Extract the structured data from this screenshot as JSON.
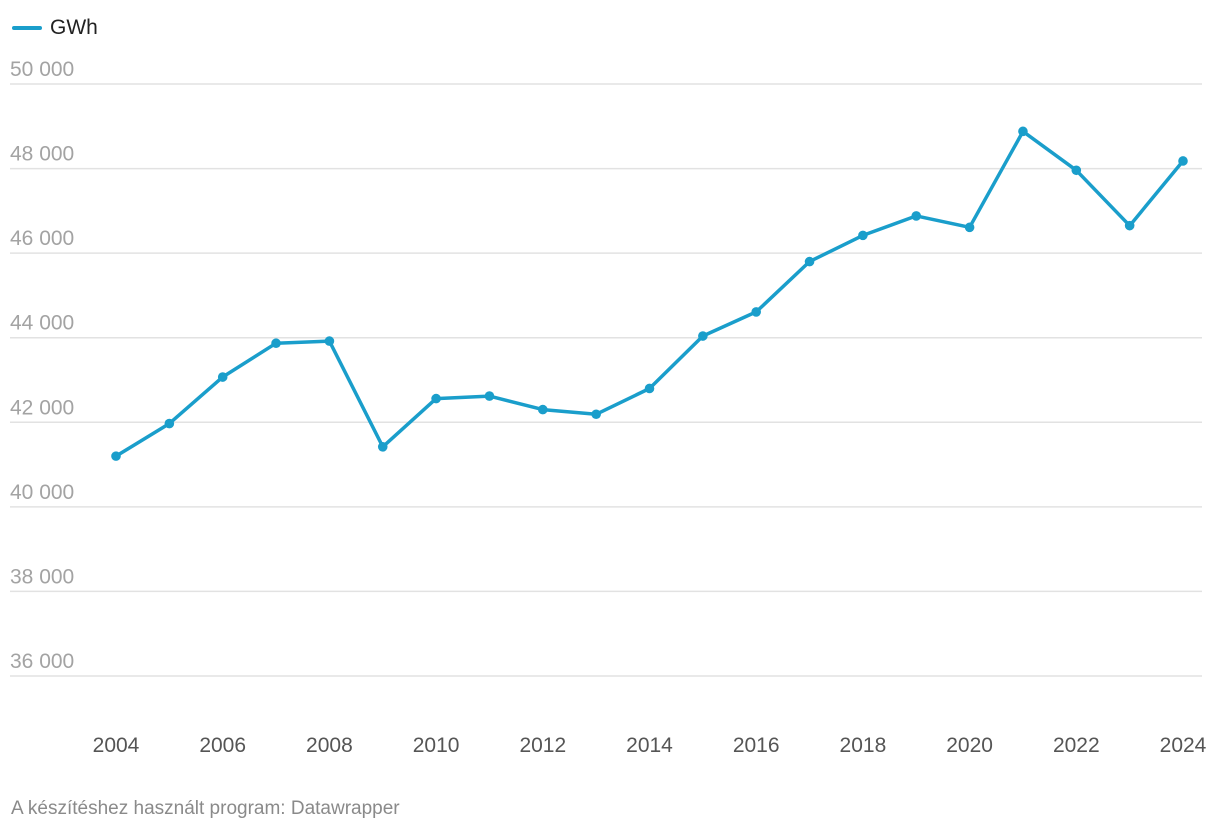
{
  "chart_data": {
    "type": "line",
    "title": "",
    "xlabel": "",
    "ylabel": "",
    "x": [
      2004,
      2005,
      2006,
      2007,
      2008,
      2009,
      2010,
      2011,
      2012,
      2013,
      2014,
      2015,
      2016,
      2017,
      2018,
      2019,
      2020,
      2021,
      2022,
      2023,
      2024
    ],
    "x_ticks": [
      "2004",
      "2006",
      "2008",
      "2010",
      "2012",
      "2014",
      "2016",
      "2018",
      "2020",
      "2022",
      "2024"
    ],
    "y_ticks": [
      "50 000",
      "48 000",
      "46 000",
      "44 000",
      "42 000",
      "40 000",
      "38 000",
      "36 000"
    ],
    "y_tick_values": [
      50000,
      48000,
      46000,
      44000,
      42000,
      40000,
      38000,
      36000
    ],
    "ylim": [
      35000,
      50000
    ],
    "xlim": [
      2004,
      2024
    ],
    "grid": true,
    "legend_position": "top-left",
    "series": [
      {
        "name": "GWh",
        "color": "#1a9ecb",
        "values": [
          41200,
          41970,
          43070,
          43870,
          43920,
          41420,
          42560,
          42620,
          42300,
          42190,
          42800,
          44040,
          44610,
          45800,
          46420,
          46880,
          46610,
          48880,
          47960,
          46650,
          48180
        ]
      }
    ]
  },
  "footer": {
    "credit": "A készítéshez használt program: Datawrapper"
  }
}
